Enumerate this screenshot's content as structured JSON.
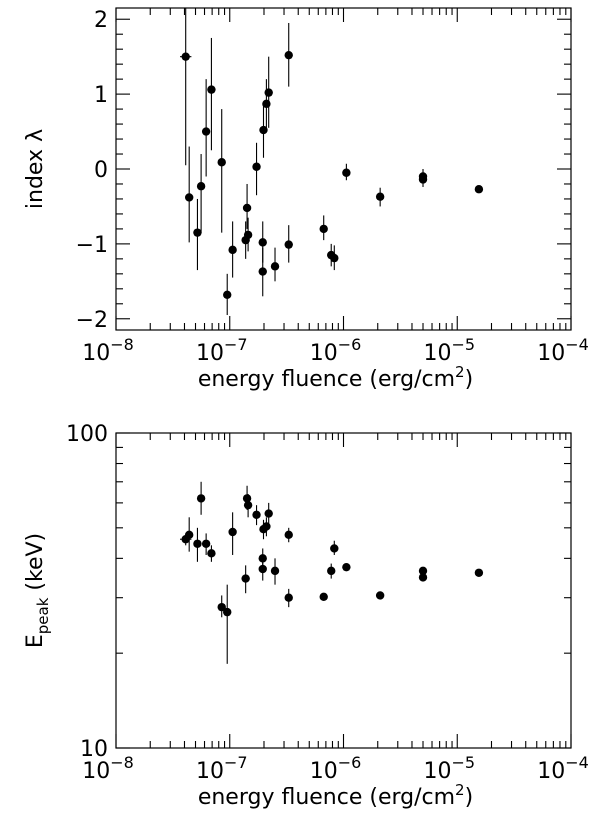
{
  "chart_data": [
    {
      "type": "scatter",
      "xscale": "log",
      "yscale": "linear",
      "xlim": [
        1e-08,
        0.0001
      ],
      "ylim": [
        -2.15,
        2.15
      ],
      "xlabel": "energy fluence (erg/cm",
      "xlabel_sup": "2",
      "xlabel_tail": ")",
      "ylabel": "index  λ",
      "x_ticks": [
        {
          "base": "10",
          "exp": "−8",
          "value": 1e-08
        },
        {
          "base": "10",
          "exp": "−7",
          "value": 1e-07
        },
        {
          "base": "10",
          "exp": "−6",
          "value": 1e-06
        },
        {
          "base": "10",
          "exp": "−5",
          "value": 1e-05
        },
        {
          "base": "10",
          "exp": "−4",
          "value": 0.0001
        }
      ],
      "y_ticks": [
        {
          "label": "−2",
          "value": -2
        },
        {
          "label": "−1",
          "value": -1
        },
        {
          "label": "0",
          "value": 0
        },
        {
          "label": "1",
          "value": 1
        },
        {
          "label": "2",
          "value": 2
        }
      ],
      "points": [
        {
          "x": 4.1e-08,
          "y": 1.5,
          "ylo": 0.05,
          "yhi": 2.15,
          "xerr": 0.05
        },
        {
          "x": 4.4e-08,
          "y": -0.38,
          "ylo": -0.98,
          "yhi": 0.3
        },
        {
          "x": 5.2e-08,
          "y": -0.85,
          "ylo": -1.35,
          "yhi": -0.4
        },
        {
          "x": 5.6e-08,
          "y": -0.23,
          "ylo": -0.85,
          "yhi": 0.2
        },
        {
          "x": 6.2e-08,
          "y": 0.5,
          "ylo": -0.1,
          "yhi": 1.2
        },
        {
          "x": 6.9e-08,
          "y": 1.06,
          "ylo": 0.25,
          "yhi": 1.75
        },
        {
          "x": 8.5e-08,
          "y": 0.09,
          "ylo": -0.85,
          "yhi": 0.8
        },
        {
          "x": 9.5e-08,
          "y": -1.68,
          "ylo": -1.95,
          "yhi": -1.4
        },
        {
          "x": 1.06e-07,
          "y": -1.08,
          "ylo": -1.45,
          "yhi": -0.7
        },
        {
          "x": 1.38e-07,
          "y": -0.95,
          "ylo": -1.2,
          "yhi": -0.7
        },
        {
          "x": 1.42e-07,
          "y": -0.52,
          "ylo": -0.8,
          "yhi": -0.2
        },
        {
          "x": 1.45e-07,
          "y": -0.88,
          "ylo": -1.1,
          "yhi": -0.65
        },
        {
          "x": 1.72e-07,
          "y": 0.03,
          "ylo": -0.35,
          "yhi": 0.35
        },
        {
          "x": 1.95e-07,
          "y": -0.98,
          "ylo": -1.25,
          "yhi": -0.7
        },
        {
          "x": 1.95e-07,
          "y": -1.37,
          "ylo": -1.7,
          "yhi": -1.05
        },
        {
          "x": 1.98e-07,
          "y": 0.52,
          "ylo": 0.15,
          "yhi": 0.9
        },
        {
          "x": 2.1e-07,
          "y": 0.87,
          "ylo": 0.55,
          "yhi": 1.2
        },
        {
          "x": 2.2e-07,
          "y": 1.02,
          "ylo": 0.55,
          "yhi": 1.5
        },
        {
          "x": 2.5e-07,
          "y": -1.3,
          "ylo": -1.5,
          "yhi": -1.05
        },
        {
          "x": 3.3e-07,
          "y": 1.52,
          "ylo": 1.1,
          "yhi": 1.95
        },
        {
          "x": 3.3e-07,
          "y": -1.01,
          "ylo": -1.25,
          "yhi": -0.75
        },
        {
          "x": 6.7e-07,
          "y": -0.8,
          "ylo": -0.95,
          "yhi": -0.62
        },
        {
          "x": 7.8e-07,
          "y": -1.15,
          "ylo": -1.3,
          "yhi": -1.0
        },
        {
          "x": 8.3e-07,
          "y": -1.19,
          "ylo": -1.35,
          "yhi": -1.02
        },
        {
          "x": 1.06e-06,
          "y": -0.05,
          "ylo": -0.15,
          "yhi": 0.07
        },
        {
          "x": 2.1e-06,
          "y": -0.37,
          "ylo": -0.5,
          "yhi": -0.25
        },
        {
          "x": 5e-06,
          "y": -0.1,
          "ylo": -0.2,
          "yhi": 0.0
        },
        {
          "x": 5e-06,
          "y": -0.14,
          "ylo": -0.24,
          "yhi": -0.04
        },
        {
          "x": 1.55e-05,
          "y": -0.27,
          "ylo": -0.27,
          "yhi": -0.27
        }
      ]
    },
    {
      "type": "scatter",
      "xscale": "log",
      "yscale": "log",
      "xlim": [
        1e-08,
        0.0001
      ],
      "ylim": [
        10,
        100
      ],
      "xlabel": "energy fluence (erg/cm",
      "xlabel_sup": "2",
      "xlabel_tail": ")",
      "ylabel_main": "E",
      "ylabel_sub": "peak",
      "ylabel_tail": " (keV)",
      "x_ticks": [
        {
          "base": "10",
          "exp": "−8",
          "value": 1e-08
        },
        {
          "base": "10",
          "exp": "−7",
          "value": 1e-07
        },
        {
          "base": "10",
          "exp": "−6",
          "value": 1e-06
        },
        {
          "base": "10",
          "exp": "−5",
          "value": 1e-05
        },
        {
          "base": "10",
          "exp": "−4",
          "value": 0.0001
        }
      ],
      "y_ticks": [
        {
          "label": "10",
          "value": 10
        },
        {
          "label": "100",
          "value": 100
        }
      ],
      "points": [
        {
          "x": 4.1e-08,
          "y": 46,
          "ylo": 44,
          "yhi": 48,
          "xerr": 0.05
        },
        {
          "x": 4.4e-08,
          "y": 47.5,
          "ylo": 42,
          "yhi": 54
        },
        {
          "x": 5.2e-08,
          "y": 44.5,
          "ylo": 39,
          "yhi": 50
        },
        {
          "x": 5.6e-08,
          "y": 62,
          "ylo": 55,
          "yhi": 70
        },
        {
          "x": 6.2e-08,
          "y": 44.5,
          "ylo": 41,
          "yhi": 48
        },
        {
          "x": 6.9e-08,
          "y": 41.5,
          "ylo": 39,
          "yhi": 44
        },
        {
          "x": 8.5e-08,
          "y": 28,
          "ylo": 26,
          "yhi": 30.5
        },
        {
          "x": 9.5e-08,
          "y": 27,
          "ylo": 18.5,
          "yhi": 33
        },
        {
          "x": 1.06e-07,
          "y": 48.5,
          "ylo": 41,
          "yhi": 56
        },
        {
          "x": 1.38e-07,
          "y": 34.5,
          "ylo": 31,
          "yhi": 38
        },
        {
          "x": 1.42e-07,
          "y": 62,
          "ylo": 57,
          "yhi": 68
        },
        {
          "x": 1.45e-07,
          "y": 59,
          "ylo": 54,
          "yhi": 64
        },
        {
          "x": 1.72e-07,
          "y": 55,
          "ylo": 51,
          "yhi": 59
        },
        {
          "x": 1.95e-07,
          "y": 40,
          "ylo": 37,
          "yhi": 43
        },
        {
          "x": 1.95e-07,
          "y": 37,
          "ylo": 34,
          "yhi": 40
        },
        {
          "x": 1.98e-07,
          "y": 49.5,
          "ylo": 46,
          "yhi": 53
        },
        {
          "x": 2.1e-07,
          "y": 50.5,
          "ylo": 47,
          "yhi": 54
        },
        {
          "x": 2.2e-07,
          "y": 55.5,
          "ylo": 51,
          "yhi": 60
        },
        {
          "x": 2.5e-07,
          "y": 36.5,
          "ylo": 33,
          "yhi": 40
        },
        {
          "x": 3.3e-07,
          "y": 47.5,
          "ylo": 45,
          "yhi": 50
        },
        {
          "x": 3.3e-07,
          "y": 30,
          "ylo": 28,
          "yhi": 32
        },
        {
          "x": 6.7e-07,
          "y": 30.2,
          "ylo": 29.5,
          "yhi": 31
        },
        {
          "x": 7.8e-07,
          "y": 36.5,
          "ylo": 34.5,
          "yhi": 38.5
        },
        {
          "x": 8.3e-07,
          "y": 43,
          "ylo": 41,
          "yhi": 45.5
        },
        {
          "x": 1.06e-06,
          "y": 37.5,
          "ylo": 36.5,
          "yhi": 38.5
        },
        {
          "x": 2.1e-06,
          "y": 30.5,
          "ylo": 30.5,
          "yhi": 30.5
        },
        {
          "x": 5e-06,
          "y": 36.5,
          "ylo": 35.5,
          "yhi": 37.5
        },
        {
          "x": 5e-06,
          "y": 34.8,
          "ylo": 34.0,
          "yhi": 35.6
        },
        {
          "x": 1.55e-05,
          "y": 36,
          "ylo": 36,
          "yhi": 36
        }
      ]
    }
  ]
}
